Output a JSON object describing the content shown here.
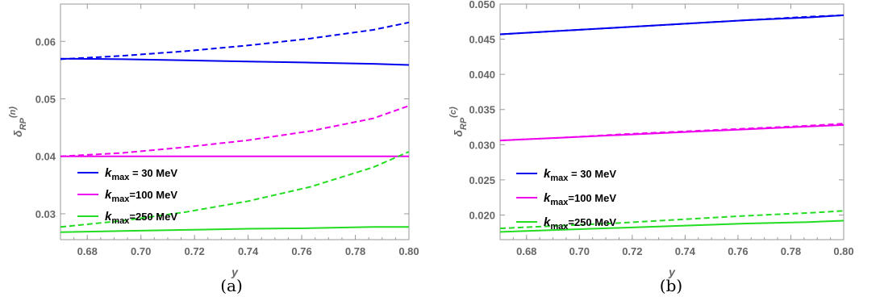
{
  "chart_data": [
    {
      "type": "line",
      "panel_label": "(a)",
      "xlabel": "y",
      "ylabel_base": "δ",
      "ylabel_sub": "RP",
      "ylabel_sup": "(n)",
      "xlim": [
        0.67,
        0.8
      ],
      "ylim": [
        0.0255,
        0.0665
      ],
      "xticks": [
        0.68,
        0.7,
        0.72,
        0.74,
        0.76,
        0.78,
        0.8
      ],
      "xtick_labels": [
        "0.68",
        "0.70",
        "0.72",
        "0.74",
        "0.76",
        "0.78",
        "0.80"
      ],
      "yticks": [
        0.03,
        0.04,
        0.05,
        0.06
      ],
      "ytick_labels": [
        "0.03",
        "0.04",
        "0.05",
        "0.06"
      ],
      "x": [
        0.67,
        0.6933,
        0.7167,
        0.74,
        0.7633,
        0.7867,
        0.8
      ],
      "series": [
        {
          "name": "k_max = 30 MeV",
          "color": "#0000ee",
          "dash": "solid",
          "values": [
            0.057,
            0.0569,
            0.0567,
            0.0565,
            0.0563,
            0.0561,
            0.0559
          ]
        },
        {
          "name": "k_max = 30 MeV",
          "color": "#0000ee",
          "dash": "dashed",
          "values": [
            0.0569,
            0.0575,
            0.0583,
            0.0593,
            0.0605,
            0.062,
            0.0633
          ]
        },
        {
          "name": "k_max = 100 MeV",
          "color": "#ee00ee",
          "dash": "solid",
          "values": [
            0.04,
            0.04,
            0.04,
            0.04,
            0.04,
            0.04,
            0.04
          ]
        },
        {
          "name": "k_max = 100 MeV",
          "color": "#ee00ee",
          "dash": "dashed",
          "values": [
            0.04,
            0.0406,
            0.0416,
            0.0428,
            0.0444,
            0.0466,
            0.0488
          ]
        },
        {
          "name": "k_max = 250 MeV",
          "color": "#22dd22",
          "dash": "solid",
          "values": [
            0.0268,
            0.027,
            0.0272,
            0.0274,
            0.0275,
            0.0277,
            0.0277
          ]
        },
        {
          "name": "k_max = 250 MeV",
          "color": "#22dd22",
          "dash": "dashed",
          "values": [
            0.0277,
            0.0288,
            0.0303,
            0.0322,
            0.0347,
            0.0381,
            0.0408
          ]
        }
      ],
      "legend": [
        {
          "base": "k",
          "sub": "max",
          "rest": " = 30 MeV",
          "color": "#0000ee"
        },
        {
          "base": "k",
          "sub": "max",
          "rest": "=100 MeV",
          "color": "#ee00ee"
        },
        {
          "base": "k",
          "sub": "max",
          "rest": "=250 MeV",
          "color": "#22dd22"
        }
      ]
    },
    {
      "type": "line",
      "panel_label": "(b)",
      "xlabel": "y",
      "ylabel_base": "δ",
      "ylabel_sub": "RP",
      "ylabel_sup": "(c)",
      "xlim": [
        0.67,
        0.8
      ],
      "ylim": [
        0.0165,
        0.05
      ],
      "xticks": [
        0.68,
        0.7,
        0.72,
        0.74,
        0.76,
        0.78,
        0.8
      ],
      "xtick_labels": [
        "0.68",
        "0.70",
        "0.72",
        "0.74",
        "0.76",
        "0.78",
        "0.80"
      ],
      "yticks": [
        0.02,
        0.025,
        0.03,
        0.035,
        0.04,
        0.045,
        0.05
      ],
      "ytick_labels": [
        "0.020",
        "0.025",
        "0.030",
        "0.035",
        "0.040",
        "0.045",
        "0.050"
      ],
      "x": [
        0.67,
        0.6933,
        0.7167,
        0.74,
        0.7633,
        0.7867,
        0.8
      ],
      "series": [
        {
          "name": "k_max = 30 MeV",
          "color": "#0000ee",
          "dash": "solid",
          "values": [
            0.0457,
            0.0462,
            0.0467,
            0.0472,
            0.0477,
            0.0481,
            0.0484
          ]
        },
        {
          "name": "k_max = 30 MeV",
          "color": "#0000ee",
          "dash": "dashed",
          "values": [
            0.0457,
            0.0462,
            0.0467,
            0.0472,
            0.0477,
            0.0482,
            0.0484
          ]
        },
        {
          "name": "k_max = 100 MeV",
          "color": "#ee00ee",
          "dash": "solid",
          "values": [
            0.0306,
            0.031,
            0.0314,
            0.0318,
            0.0322,
            0.0326,
            0.0328
          ]
        },
        {
          "name": "k_max = 100 MeV",
          "color": "#ee00ee",
          "dash": "dashed",
          "values": [
            0.0306,
            0.031,
            0.0315,
            0.0319,
            0.0323,
            0.0327,
            0.033
          ]
        },
        {
          "name": "k_max = 250 MeV",
          "color": "#22dd22",
          "dash": "solid",
          "values": [
            0.0176,
            0.0179,
            0.0182,
            0.0185,
            0.0188,
            0.019,
            0.0192
          ]
        },
        {
          "name": "k_max = 250 MeV",
          "color": "#22dd22",
          "dash": "dashed",
          "values": [
            0.0181,
            0.0185,
            0.0189,
            0.0194,
            0.0199,
            0.0203,
            0.0206
          ]
        }
      ],
      "legend": [
        {
          "base": "k",
          "sub": "max",
          "rest": " = 30 MeV",
          "color": "#0000ee"
        },
        {
          "base": "k",
          "sub": "max",
          "rest": "=100 MeV",
          "color": "#ee00ee"
        },
        {
          "base": "k",
          "sub": "max",
          "rest": "=250 MeV",
          "color": "#22dd22"
        }
      ]
    }
  ]
}
